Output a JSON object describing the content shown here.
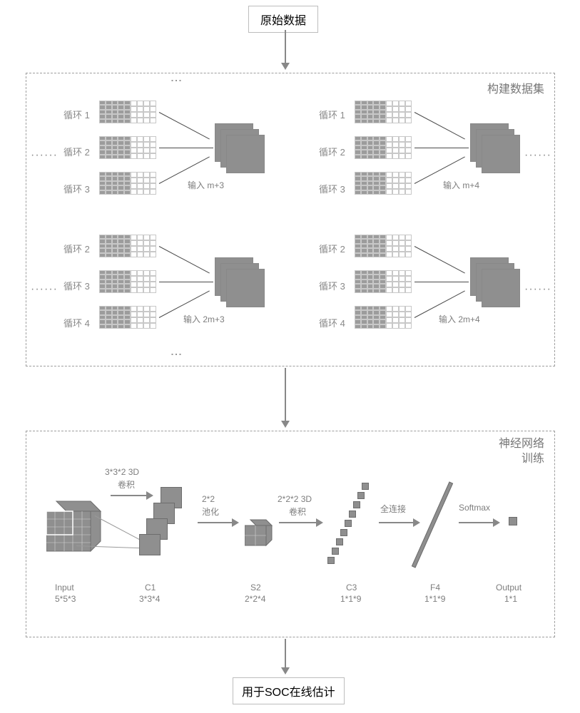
{
  "top_box": "原始数据",
  "panel1_title": "构建数据集",
  "panel2_title": "神经网络 训练",
  "bottom_box": "用于SOC在线估计",
  "groups": {
    "g1": {
      "c": [
        "循环 1",
        "循环 2",
        "循环 3"
      ],
      "out": "输入 m+3"
    },
    "g2": {
      "c": [
        "循环 1",
        "循环 2",
        "循环 3"
      ],
      "out": "输入 m+4"
    },
    "g3": {
      "c": [
        "循环 2",
        "循环 3",
        "循环 4"
      ],
      "out": "输入 2m+3"
    },
    "g4": {
      "c": [
        "循环 2",
        "循环 3",
        "循环 4"
      ],
      "out": "输入 2m+4"
    }
  },
  "nn": {
    "conv1_label": "3*3*2 3D",
    "conv1_sub": "卷积",
    "pool_label": "2*2",
    "pool_sub": "池化",
    "conv2_label": "2*2*2 3D",
    "conv2_sub": "卷积",
    "fc_label": "全连接",
    "sm_label": "Softmax",
    "input_name": "Input",
    "input_dim": "5*5*3",
    "c1_name": "C1",
    "c1_dim": "3*3*4",
    "s2_name": "S2",
    "s2_dim": "2*2*4",
    "c3_name": "C3",
    "c3_dim": "1*1*9",
    "f4_name": "F4",
    "f4_dim": "1*1*9",
    "out_name": "Output",
    "out_dim": "1*1"
  },
  "colors": {
    "gray_fill": "#8f8f8f",
    "gray_border": "#9e9e9e",
    "text_gray": "#7d7d7d"
  }
}
